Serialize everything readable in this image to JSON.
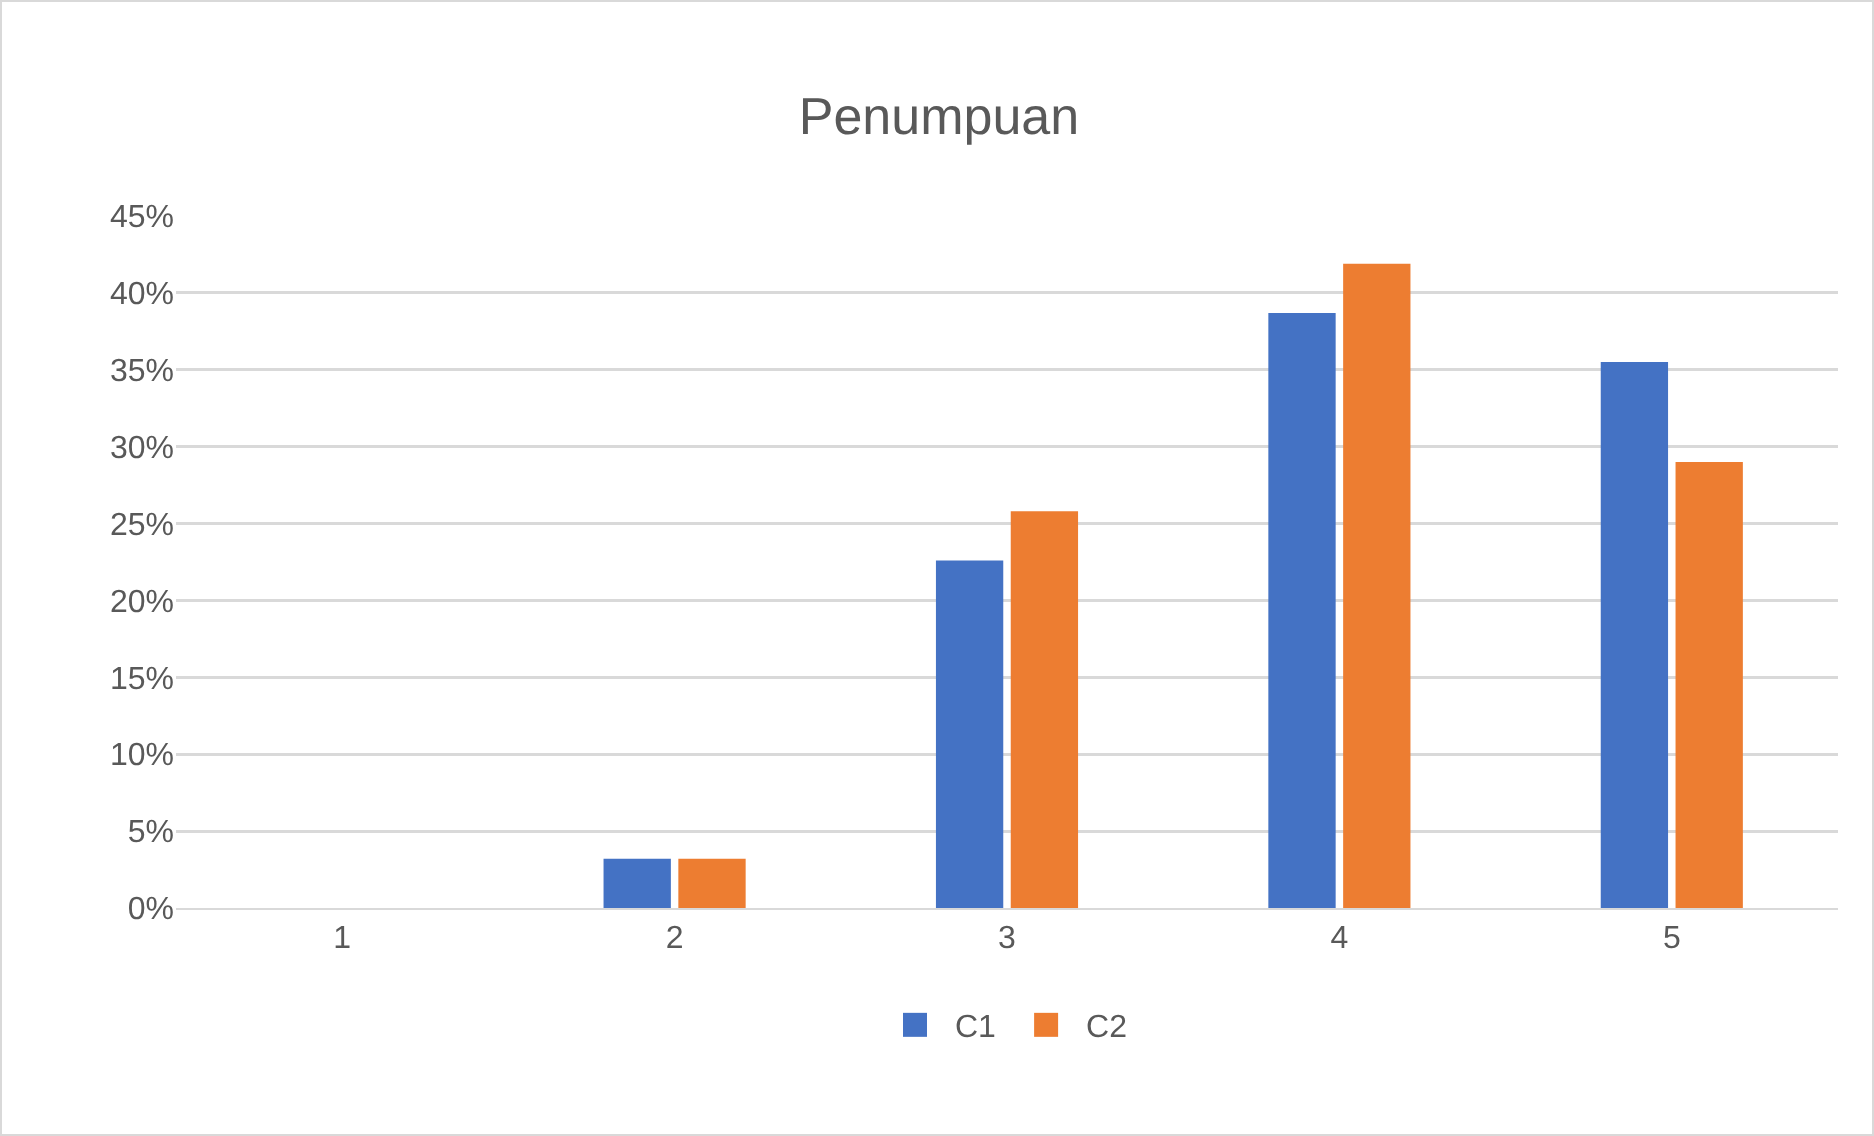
{
  "chart_data": {
    "type": "bar",
    "title": "Penumpuan",
    "categories": [
      "1",
      "2",
      "3",
      "4",
      "5"
    ],
    "series": [
      {
        "name": "C1",
        "color": "#4472c4",
        "values": [
          0,
          3.2,
          22.6,
          38.7,
          35.5
        ]
      },
      {
        "name": "C2",
        "color": "#ed7d31",
        "values": [
          0,
          3.2,
          25.8,
          41.9,
          29.0
        ]
      }
    ],
    "ylim": [
      0,
      45
    ],
    "yticks": [
      {
        "value": 0,
        "label": "0%"
      },
      {
        "value": 5,
        "label": "5%"
      },
      {
        "value": 10,
        "label": "10%"
      },
      {
        "value": 15,
        "label": "15%"
      },
      {
        "value": 20,
        "label": "20%"
      },
      {
        "value": 25,
        "label": "25%"
      },
      {
        "value": 30,
        "label": "30%"
      },
      {
        "value": 35,
        "label": "35%"
      },
      {
        "value": 40,
        "label": "40%"
      },
      {
        "value": 45,
        "label": "45%"
      }
    ],
    "grid": "y",
    "legend": "bottom"
  }
}
